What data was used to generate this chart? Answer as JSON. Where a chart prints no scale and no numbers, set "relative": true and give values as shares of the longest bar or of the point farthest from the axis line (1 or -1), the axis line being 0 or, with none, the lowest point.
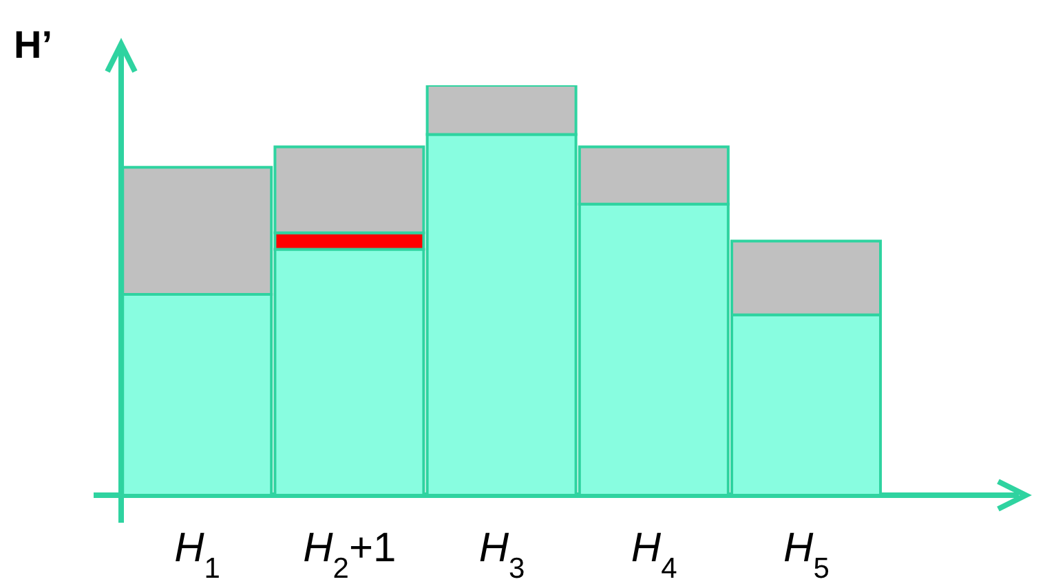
{
  "chart_data": {
    "type": "bar",
    "relative": true,
    "stacked": true,
    "ylabel": "H’",
    "categories": [
      "H$_{1}$",
      "H$_{2}$+1",
      "H$_{3}$",
      "H$_{4}$",
      "H$_{5}$"
    ],
    "series": [
      {
        "color": "#88fde0",
        "values": [
          0.49,
          0.6,
          0.88,
          0.71,
          0.44
        ]
      },
      {
        "color": "#ff0000",
        "values": [
          null,
          0.04,
          null,
          null,
          null
        ]
      },
      {
        "color": "#c0c0c0",
        "values": [
          0.31,
          0.21,
          0.12,
          0.14,
          0.18
        ]
      }
    ],
    "grid": false,
    "legend": false
  }
}
